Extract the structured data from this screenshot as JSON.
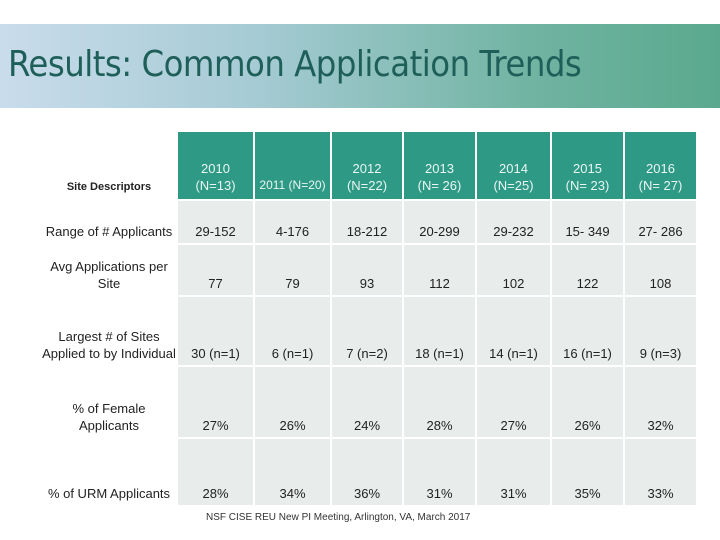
{
  "slide": {
    "title": "Results: Common Application Trends",
    "footer": "NSF CISE REU New PI Meeting, Arlington, VA, March 2017"
  },
  "table": {
    "header": {
      "label": "Site Descriptors",
      "years": [
        {
          "year": "2010",
          "n": "(N=13)"
        },
        {
          "year": "",
          "n": "2011 (N=20)"
        },
        {
          "year": "2012",
          "n": "(N=22)"
        },
        {
          "year": "2013",
          "n": "(N= 26)"
        },
        {
          "year": "2014",
          "n": "(N=25)"
        },
        {
          "year": "2015",
          "n": "(N= 23)"
        },
        {
          "year": "2016",
          "n": "(N= 27)"
        }
      ]
    },
    "rows": [
      {
        "label": "Range of # Applicants",
        "values": [
          "29-152",
          "4-176",
          "18-212",
          "20-299",
          "29-232",
          "15- 349",
          "27- 286"
        ]
      },
      {
        "label": "Avg Applications per Site",
        "values": [
          "77",
          "79",
          "93",
          "112",
          "102",
          "122",
          "108"
        ]
      },
      {
        "label": "Largest # of Sites Applied to by Individual",
        "values": [
          "30 (n=1)",
          "6  (n=1)",
          "7 (n=2)",
          "18 (n=1)",
          "14 (n=1)",
          "16 (n=1)",
          "9 (n=3)"
        ]
      },
      {
        "label": "% of Female Applicants",
        "values": [
          "27%",
          "26%",
          "24%",
          "28%",
          "27%",
          "26%",
          "32%"
        ]
      },
      {
        "label": "% of URM Applicants",
        "values": [
          "28%",
          "34%",
          "36%",
          "31%",
          "31%",
          "35%",
          "33%"
        ]
      }
    ]
  }
}
